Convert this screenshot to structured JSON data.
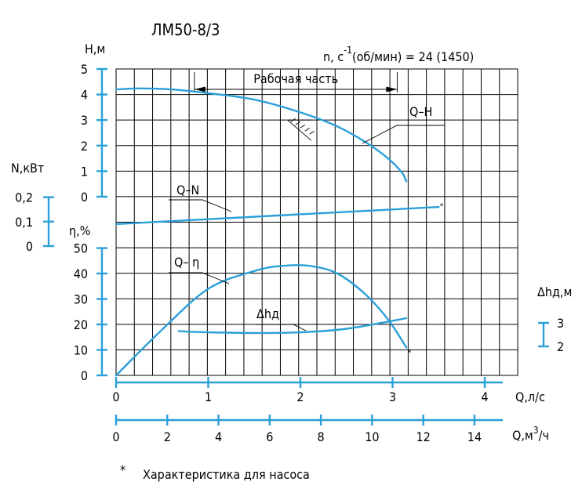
{
  "chart_data": {
    "type": "line",
    "title": "ЛМ50-8/3",
    "speed_label": "n, c",
    "speed_sup": "-1",
    "speed_rest": "(об/мин) = 24 (1450)",
    "work_zone_label": "Рабочая часть",
    "work_zone_q": [
      0.85,
      3.05
    ],
    "x_axis_primary": {
      "label": "Q,л/с",
      "range": [
        0,
        4.4
      ],
      "ticks": [
        "0",
        "1",
        "2",
        "3",
        "4"
      ],
      "tick_values": [
        0,
        1,
        2,
        3,
        4
      ]
    },
    "x_axis_secondary": {
      "label": "Q,м",
      "label_sup": "3",
      "label_suffix": "/ч",
      "ticks": [
        "0",
        "2",
        "4",
        "6",
        "8",
        "10",
        "12",
        "14"
      ],
      "tick_values": [
        0,
        2,
        4,
        6,
        8,
        10,
        12,
        14
      ]
    },
    "y_axis_head": {
      "label": "Н,м",
      "range": [
        0,
        5
      ],
      "ticks": [
        "0",
        "1",
        "2",
        "3",
        "4",
        "5"
      ],
      "tick_values": [
        0,
        1,
        2,
        3,
        4,
        5
      ]
    },
    "y_axis_power": {
      "label": "N,кВт",
      "ticks": [
        "0",
        "0,1",
        "0,2"
      ],
      "tick_values": [
        0,
        0.1,
        0.2
      ]
    },
    "y_axis_eff": {
      "label": "η,%",
      "range": [
        0,
        50
      ],
      "ticks": [
        "0",
        "10",
        "20",
        "30",
        "40",
        "50"
      ],
      "tick_values": [
        0,
        10,
        20,
        30,
        40,
        50
      ]
    },
    "y_axis_npsh": {
      "label": "Δhд,м",
      "ticks": [
        "2",
        "3"
      ],
      "tick_values": [
        2,
        3
      ]
    },
    "series": [
      {
        "name": "Q–H",
        "x": [
          0,
          0.25,
          0.6,
          1.0,
          1.5,
          2.0,
          2.4,
          2.7,
          2.95,
          3.1,
          3.15
        ],
        "y": [
          4.2,
          4.24,
          4.2,
          4.05,
          3.8,
          3.3,
          2.75,
          2.15,
          1.5,
          0.95,
          0.6
        ]
      },
      {
        "name": "Q–N",
        "x": [
          0,
          3.5
        ],
        "y": [
          0.09,
          0.16
        ]
      },
      {
        "name": "Q– η",
        "x": [
          0,
          0.5,
          1.0,
          1.5,
          1.8,
          2.1,
          2.4,
          2.7,
          2.95,
          3.15
        ],
        "y": [
          0,
          18,
          34,
          41,
          43,
          43,
          40,
          32,
          22,
          11
        ]
      },
      {
        "name": "Δhд",
        "x": [
          0.68,
          1.0,
          1.5,
          2.0,
          2.5,
          3.15
        ],
        "y": [
          2.65,
          2.6,
          2.57,
          2.6,
          2.75,
          3.2
        ]
      }
    ],
    "footnote_mark": "*",
    "footnote": "Характеристика для насоса"
  }
}
